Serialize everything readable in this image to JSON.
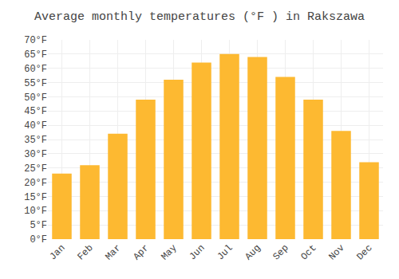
{
  "chart_data": {
    "type": "bar",
    "title": "Average monthly temperatures (°F ) in Rakszawa",
    "categories": [
      "Jan",
      "Feb",
      "Mar",
      "Apr",
      "May",
      "Jun",
      "Jul",
      "Aug",
      "Sep",
      "Oct",
      "Nov",
      "Dec"
    ],
    "values": [
      23,
      26,
      37,
      49,
      56,
      62,
      65,
      64,
      57,
      49,
      38,
      27
    ],
    "color": "#FDB931",
    "ylim": [
      0,
      70
    ],
    "yticks": [
      {
        "value": 0,
        "label": "0°F"
      },
      {
        "value": 5,
        "label": "5°F"
      },
      {
        "value": 10,
        "label": "10°F"
      },
      {
        "value": 15,
        "label": "15°F"
      },
      {
        "value": 20,
        "label": "20°F"
      },
      {
        "value": 25,
        "label": "25°F"
      },
      {
        "value": 30,
        "label": "30°F"
      },
      {
        "value": 35,
        "label": "35°F"
      },
      {
        "value": 40,
        "label": "40°F"
      },
      {
        "value": 45,
        "label": "45°F"
      },
      {
        "value": 50,
        "label": "50°F"
      },
      {
        "value": 55,
        "label": "55°F"
      },
      {
        "value": 60,
        "label": "60°F"
      },
      {
        "value": 65,
        "label": "65°F"
      },
      {
        "value": 70,
        "label": "70°F"
      }
    ],
    "grid": true
  }
}
